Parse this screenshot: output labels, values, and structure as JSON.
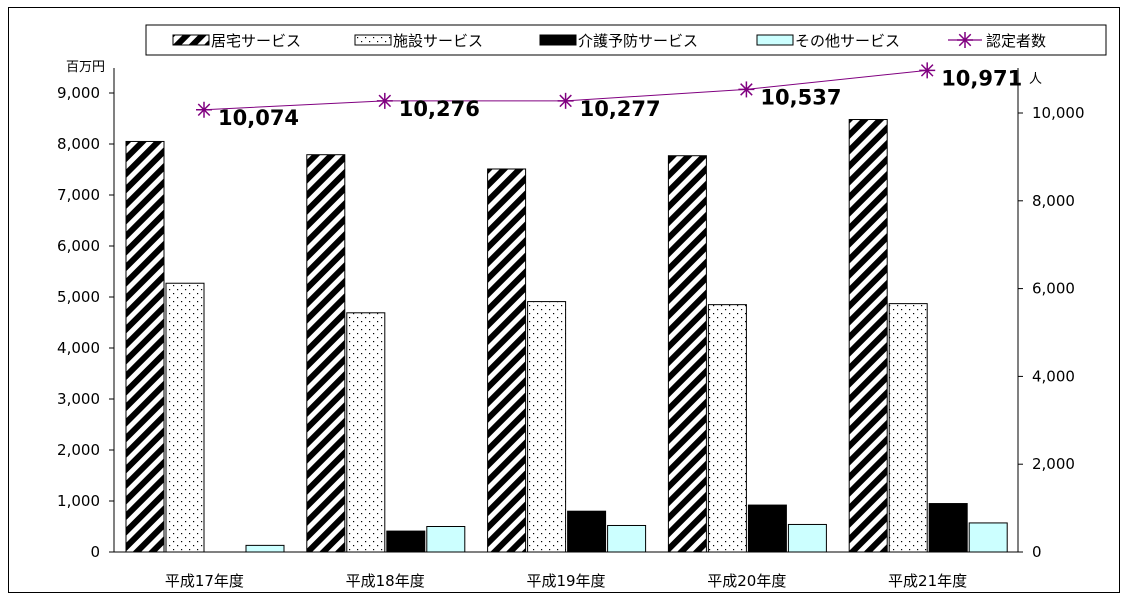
{
  "chart_data": {
    "type": "bar",
    "categories": [
      "平成17年度",
      "平成18年度",
      "平成19年度",
      "平成20年度",
      "平成21年度"
    ],
    "series": [
      {
        "name": "居宅サービス",
        "axis": "left",
        "pattern": "diagonal-stripes",
        "values": [
          8050,
          7790,
          7510,
          7770,
          8480
        ]
      },
      {
        "name": "施設サービス",
        "axis": "left",
        "pattern": "dots",
        "values": [
          5270,
          4690,
          4910,
          4850,
          4870
        ]
      },
      {
        "name": "介護予防サービス",
        "axis": "left",
        "pattern": "solid-black",
        "values": [
          0,
          410,
          800,
          920,
          950
        ]
      },
      {
        "name": "その他サービス",
        "axis": "left",
        "pattern": "light-cyan",
        "values": [
          130,
          500,
          520,
          540,
          570
        ]
      },
      {
        "name": "認定者数",
        "axis": "right",
        "type": "line",
        "marker": "asterisk",
        "color": "#800080",
        "values": [
          10074,
          10276,
          10277,
          10537,
          10971
        ],
        "labels": [
          "10,074",
          "10,276",
          "10,277",
          "10,537",
          "10,971"
        ]
      }
    ],
    "y_left": {
      "unit": "百万円",
      "ylim": [
        0,
        9000
      ],
      "ticks": [
        "0",
        "1,000",
        "2,000",
        "3,000",
        "4,000",
        "5,000",
        "6,000",
        "7,000",
        "8,000",
        "9,000"
      ]
    },
    "y_right": {
      "unit": "人",
      "ylim": [
        0,
        10000
      ],
      "ticks": [
        "0",
        "2,000",
        "4,000",
        "6,000",
        "8,000",
        "10,000"
      ]
    },
    "legend": "top",
    "grid": false,
    "colors": {
      "line": "#800080",
      "cyan_bar": "#ccffff",
      "stripes": "#000000"
    }
  }
}
